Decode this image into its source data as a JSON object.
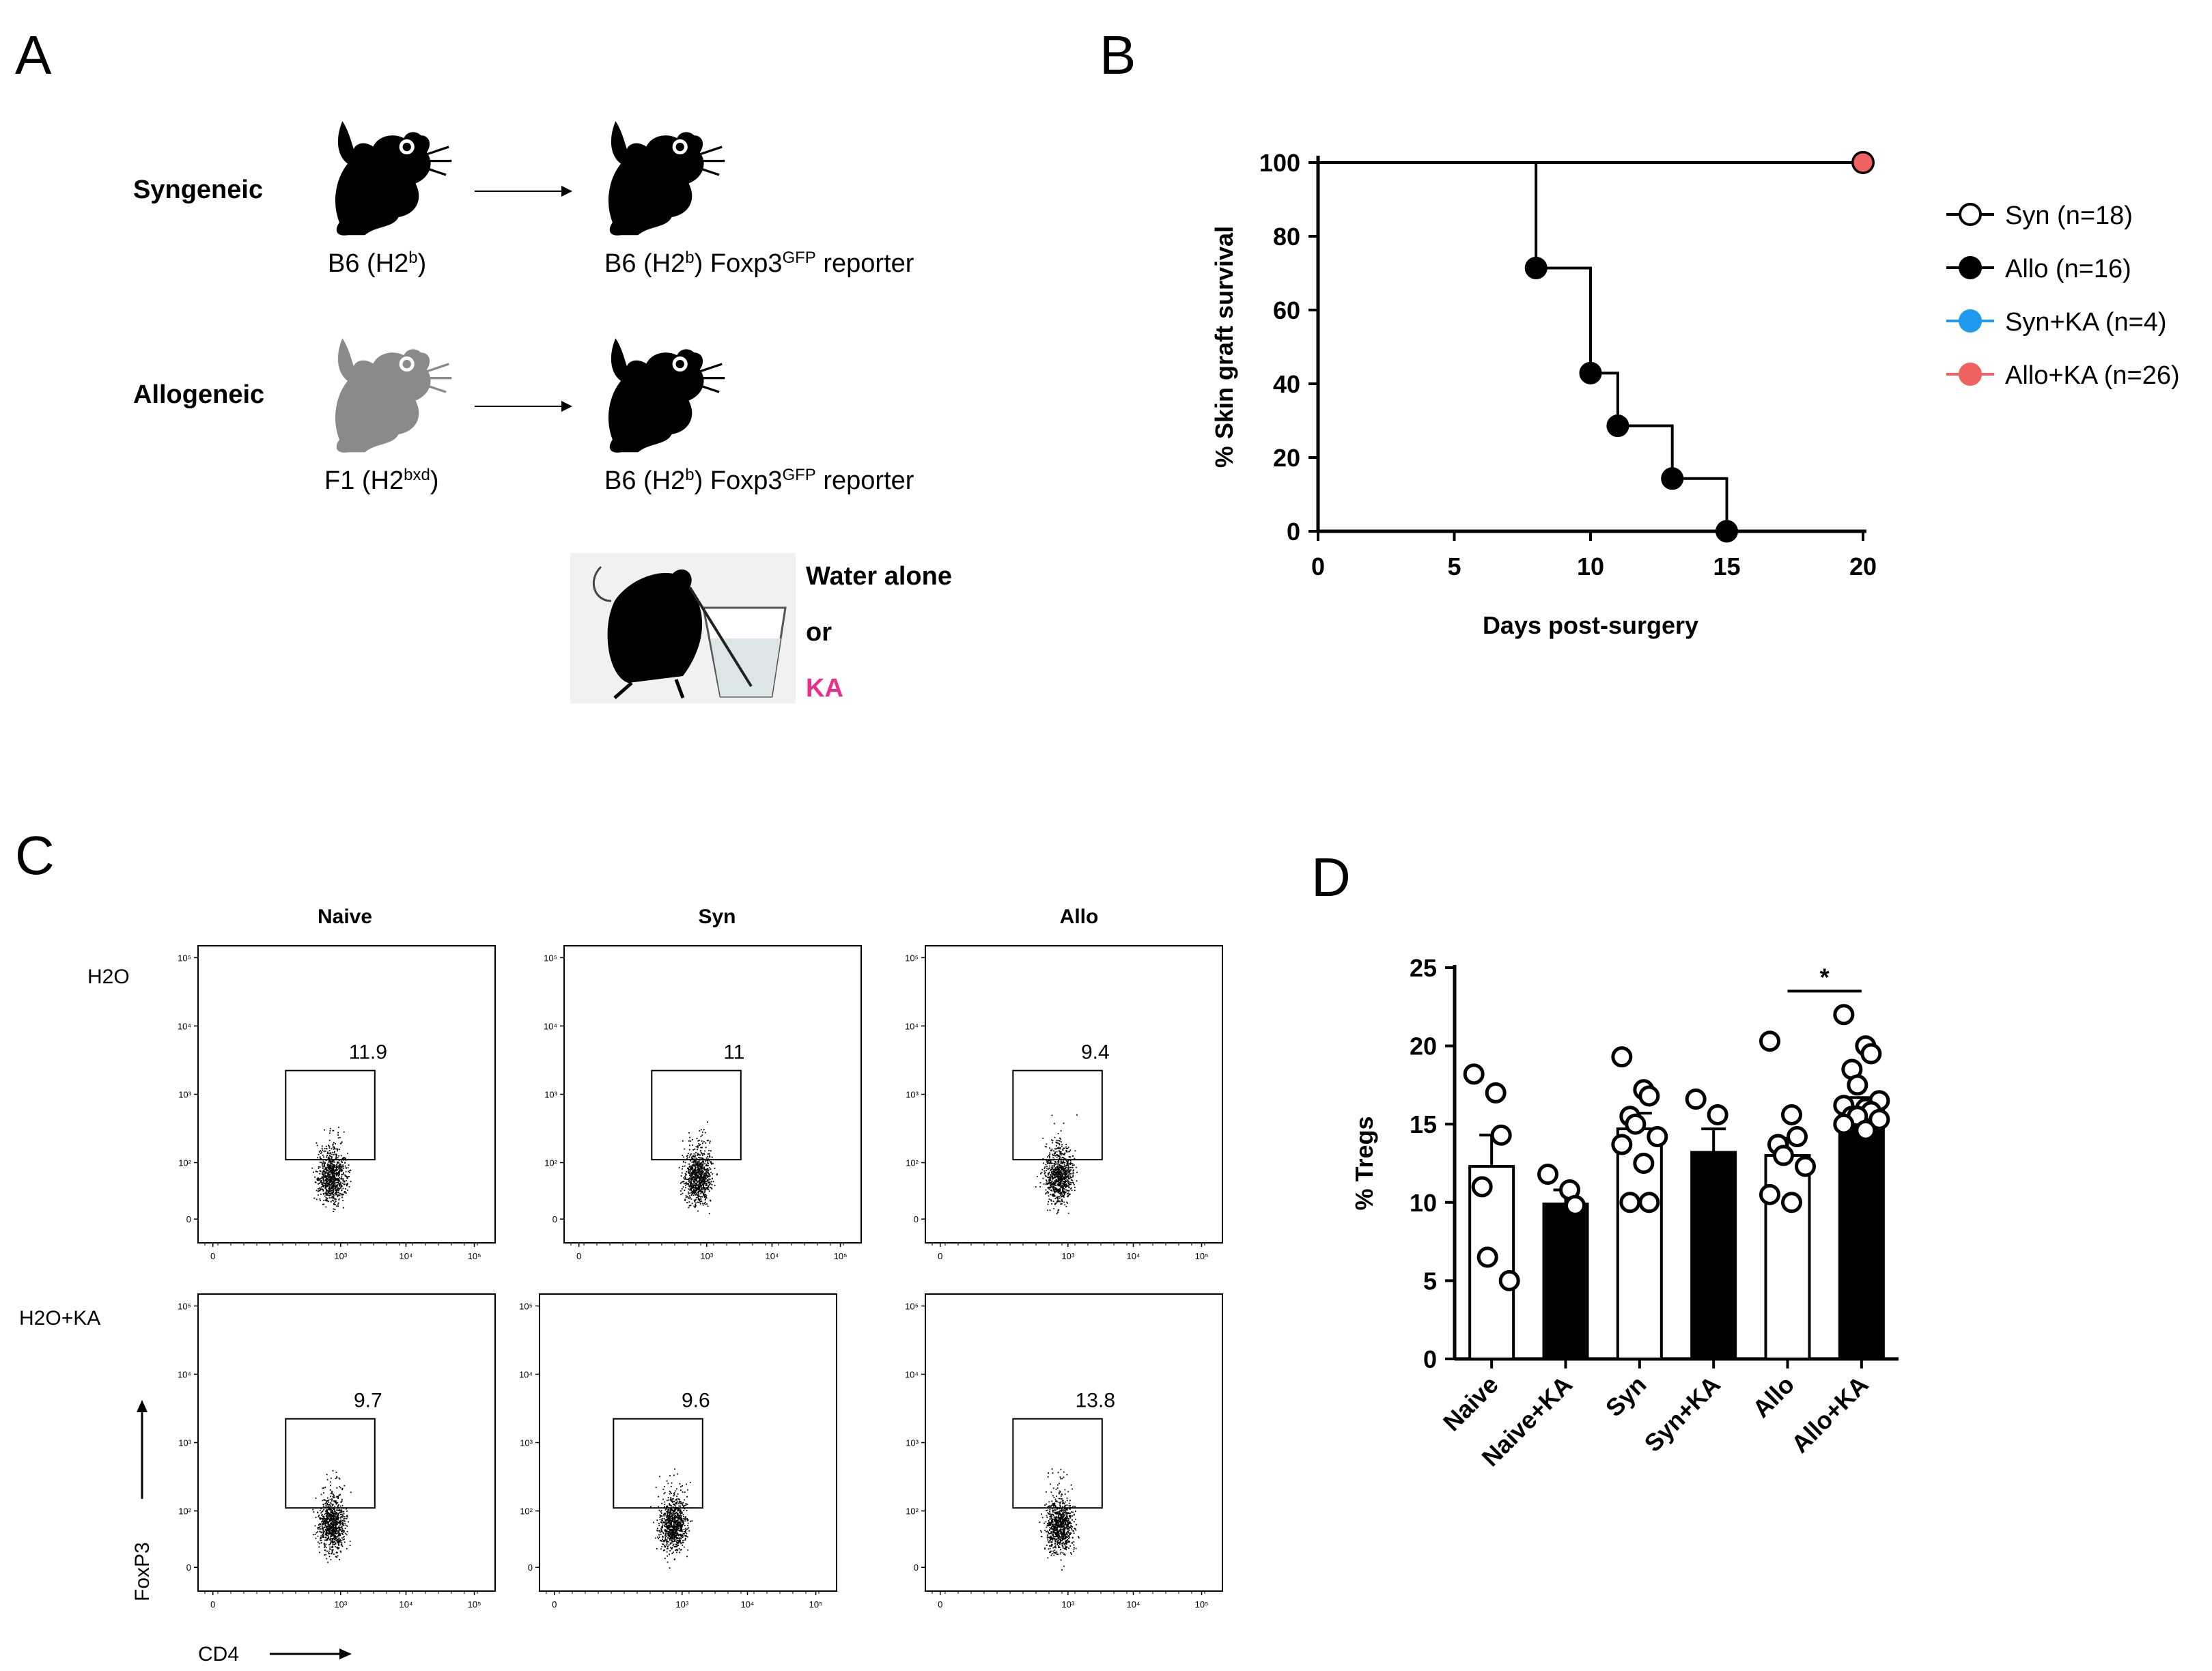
{
  "panels": {
    "A": {
      "letter": "A",
      "groups": [
        {
          "label": "Syngeneic",
          "donor": "B6 (H2",
          "donor_sup": "b",
          "donor_close": ")",
          "recipient": "B6 (H2",
          "recipient_sup": "b",
          "recipient_mid": ") Foxp3",
          "recipient_sup2": "GFP",
          "recipient_end": " reporter"
        },
        {
          "label": "Allogeneic",
          "donor": "F1 (H2",
          "donor_sup": "bxd",
          "donor_close": ")",
          "recipient": "B6 (H2",
          "recipient_sup": "b",
          "recipient_mid": ") Foxp3",
          "recipient_sup2": "GFP",
          "recipient_end": " reporter"
        }
      ],
      "treatment": {
        "line1": "Water alone",
        "line2": "or",
        "line3": "KA"
      },
      "colors": {
        "ka": "#e8308a",
        "donor_gray": "#8a8a8a"
      }
    },
    "B": {
      "letter": "B"
    },
    "C": {
      "letter": "C",
      "columns": [
        "Naive",
        "Syn",
        "Allo"
      ],
      "rows": [
        "H2O",
        "H2O+KA"
      ],
      "row_labels": {
        "r0_main": "H",
        "r0_sub": "2",
        "r0_end": "O",
        "r1_main": "H",
        "r1_sub": "2",
        "r1_end": "O+KA"
      },
      "gate_values": [
        [
          "11.9",
          "11",
          "9.4"
        ],
        [
          "9.7",
          "9.6",
          "13.8"
        ]
      ],
      "axis_y": "FoxP3",
      "axis_x": "CD4",
      "ticks_y": [
        "10⁵",
        "10⁴",
        "10³",
        "10²",
        "0"
      ],
      "ticks_x": [
        "0",
        "10³",
        "10⁴",
        "10⁵"
      ]
    },
    "D": {
      "letter": "D"
    }
  },
  "chart_data": [
    {
      "type": "line",
      "subtype": "kaplan-meier",
      "panel": "B",
      "title": "",
      "xlabel": "Days post-surgery",
      "ylabel": "% Skin graft survival",
      "xlim": [
        0,
        20
      ],
      "ylim": [
        0,
        100
      ],
      "xticks": [
        0,
        5,
        10,
        15,
        20
      ],
      "yticks": [
        0,
        20,
        40,
        60,
        80,
        100
      ],
      "legend_position": "right",
      "series": [
        {
          "name": "Syn (n=18)",
          "color": "#000000",
          "marker": "open-circle",
          "x": [
            0,
            20
          ],
          "y": [
            100,
            100
          ],
          "markers_x": [
            20
          ],
          "markers_y": [
            100
          ]
        },
        {
          "name": "Allo (n=16)",
          "color": "#000000",
          "marker": "filled-circle",
          "x": [
            0,
            8,
            8,
            10,
            10,
            11,
            11,
            13,
            13,
            15,
            15,
            20
          ],
          "y": [
            100,
            100,
            71.4,
            71.4,
            42.9,
            42.9,
            28.6,
            28.6,
            14.3,
            14.3,
            0,
            0
          ],
          "markers_x": [
            8,
            10,
            11,
            13,
            15
          ],
          "markers_y": [
            71.4,
            42.9,
            28.6,
            14.3,
            0
          ]
        },
        {
          "name": "Syn+KA (n=4)",
          "color": "#1e9bf0",
          "marker": "filled-circle",
          "x": [
            0,
            20
          ],
          "y": [
            100,
            100
          ],
          "markers_x": [
            20
          ],
          "markers_y": [
            100
          ]
        },
        {
          "name": "Allo+KA (n=26)",
          "color": "#f0625f",
          "marker": "filled-circle",
          "x": [
            0,
            20
          ],
          "y": [
            100,
            100
          ],
          "markers_x": [
            20
          ],
          "markers_y": [
            100
          ]
        }
      ]
    },
    {
      "type": "bar",
      "panel": "D",
      "title": "",
      "xlabel": "",
      "ylabel": "% Tregs",
      "ylim": [
        0,
        25
      ],
      "yticks": [
        0,
        5,
        10,
        15,
        20,
        25
      ],
      "categories": [
        "Naive",
        "Naive+KA",
        "Syn",
        "Syn+KA",
        "Allo",
        "Allo+KA"
      ],
      "values": [
        12.3,
        9.9,
        14.7,
        13.2,
        13.0,
        16.1
      ],
      "errors": [
        2.0,
        0.9,
        1.0,
        1.5,
        1.1,
        0.6
      ],
      "fills": [
        "white",
        "black",
        "white",
        "black",
        "white",
        "black"
      ],
      "points": [
        [
          18.2,
          17.0,
          14.3,
          11.0,
          6.5,
          5.0
        ],
        [
          11.8,
          10.8,
          9.8
        ],
        [
          19.3,
          17.2,
          16.8,
          15.5,
          15.0,
          14.2,
          13.7,
          12.5,
          10.0,
          10.0
        ],
        [
          16.6,
          15.6
        ],
        [
          20.3,
          15.6,
          14.2,
          13.7,
          13.0,
          12.3,
          10.5,
          10.0
        ],
        [
          22.0,
          20.0,
          19.5,
          18.5,
          17.5,
          16.5,
          16.2,
          16.0,
          15.8,
          15.5,
          15.5,
          15.3,
          15.0,
          14.6
        ]
      ],
      "significance": [
        {
          "from": "Allo",
          "to": "Allo+KA",
          "label": "*"
        }
      ]
    }
  ]
}
